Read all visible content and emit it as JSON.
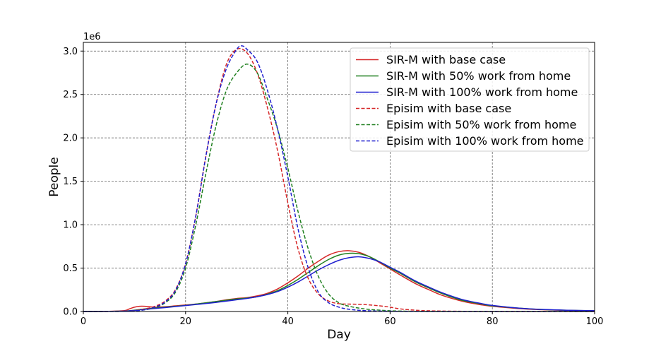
{
  "chart_data": {
    "type": "line",
    "xlabel": "Day",
    "ylabel": "People",
    "y_offset_label": "1e6",
    "xlim": [
      0,
      100
    ],
    "ylim": [
      0,
      3.1
    ],
    "y_scale_multiplier": 1000000,
    "x_ticks": [
      "0",
      "20",
      "40",
      "60",
      "80",
      "100"
    ],
    "y_ticks": [
      "0.0",
      "0.5",
      "1.0",
      "1.5",
      "2.0",
      "2.5",
      "3.0"
    ],
    "grid": true,
    "legend_position": "top-right",
    "series": [
      {
        "name": "SIR-M with base case",
        "color": "#d62728",
        "style": "solid",
        "points": [
          [
            0,
            0
          ],
          [
            5,
            0.002
          ],
          [
            8,
            0.01
          ],
          [
            9,
            0.03
          ],
          [
            10,
            0.05
          ],
          [
            11,
            0.06
          ],
          [
            12,
            0.06
          ],
          [
            13,
            0.055
          ],
          [
            14,
            0.05
          ],
          [
            16,
            0.055
          ],
          [
            18,
            0.065
          ],
          [
            20,
            0.075
          ],
          [
            22,
            0.085
          ],
          [
            24,
            0.1
          ],
          [
            26,
            0.115
          ],
          [
            28,
            0.135
          ],
          [
            30,
            0.15
          ],
          [
            32,
            0.16
          ],
          [
            34,
            0.18
          ],
          [
            36,
            0.21
          ],
          [
            38,
            0.26
          ],
          [
            40,
            0.33
          ],
          [
            42,
            0.41
          ],
          [
            44,
            0.5
          ],
          [
            46,
            0.58
          ],
          [
            48,
            0.65
          ],
          [
            50,
            0.69
          ],
          [
            52,
            0.7
          ],
          [
            54,
            0.68
          ],
          [
            56,
            0.63
          ],
          [
            58,
            0.56
          ],
          [
            60,
            0.49
          ],
          [
            62,
            0.42
          ],
          [
            65,
            0.32
          ],
          [
            68,
            0.24
          ],
          [
            70,
            0.19
          ],
          [
            74,
            0.12
          ],
          [
            78,
            0.075
          ],
          [
            80,
            0.06
          ],
          [
            85,
            0.035
          ],
          [
            90,
            0.02
          ],
          [
            95,
            0.012
          ],
          [
            100,
            0.008
          ]
        ]
      },
      {
        "name": "SIR-M with 50% work from home",
        "color": "#208020",
        "style": "solid",
        "points": [
          [
            0,
            0
          ],
          [
            5,
            0.002
          ],
          [
            8,
            0.005
          ],
          [
            10,
            0.015
          ],
          [
            12,
            0.03
          ],
          [
            14,
            0.04
          ],
          [
            16,
            0.05
          ],
          [
            18,
            0.06
          ],
          [
            20,
            0.07
          ],
          [
            22,
            0.085
          ],
          [
            24,
            0.1
          ],
          [
            26,
            0.115
          ],
          [
            28,
            0.13
          ],
          [
            30,
            0.145
          ],
          [
            32,
            0.155
          ],
          [
            34,
            0.17
          ],
          [
            36,
            0.2
          ],
          [
            38,
            0.24
          ],
          [
            40,
            0.3
          ],
          [
            42,
            0.37
          ],
          [
            44,
            0.45
          ],
          [
            46,
            0.53
          ],
          [
            48,
            0.6
          ],
          [
            50,
            0.65
          ],
          [
            52,
            0.67
          ],
          [
            54,
            0.665
          ],
          [
            56,
            0.63
          ],
          [
            58,
            0.57
          ],
          [
            60,
            0.5
          ],
          [
            62,
            0.44
          ],
          [
            65,
            0.34
          ],
          [
            68,
            0.26
          ],
          [
            70,
            0.21
          ],
          [
            74,
            0.13
          ],
          [
            78,
            0.085
          ],
          [
            80,
            0.065
          ],
          [
            85,
            0.04
          ],
          [
            90,
            0.022
          ],
          [
            95,
            0.013
          ],
          [
            100,
            0.008
          ]
        ]
      },
      {
        "name": "SIR-M with 100% work from home",
        "color": "#1f1fcf",
        "style": "solid",
        "points": [
          [
            0,
            0
          ],
          [
            5,
            0.002
          ],
          [
            8,
            0.005
          ],
          [
            10,
            0.012
          ],
          [
            12,
            0.025
          ],
          [
            14,
            0.035
          ],
          [
            16,
            0.045
          ],
          [
            18,
            0.057
          ],
          [
            20,
            0.068
          ],
          [
            22,
            0.08
          ],
          [
            24,
            0.092
          ],
          [
            26,
            0.105
          ],
          [
            28,
            0.12
          ],
          [
            30,
            0.135
          ],
          [
            32,
            0.15
          ],
          [
            34,
            0.17
          ],
          [
            36,
            0.195
          ],
          [
            38,
            0.23
          ],
          [
            40,
            0.28
          ],
          [
            42,
            0.34
          ],
          [
            44,
            0.41
          ],
          [
            46,
            0.48
          ],
          [
            48,
            0.54
          ],
          [
            50,
            0.59
          ],
          [
            52,
            0.62
          ],
          [
            54,
            0.63
          ],
          [
            56,
            0.61
          ],
          [
            58,
            0.57
          ],
          [
            60,
            0.51
          ],
          [
            62,
            0.45
          ],
          [
            65,
            0.35
          ],
          [
            68,
            0.27
          ],
          [
            70,
            0.22
          ],
          [
            74,
            0.14
          ],
          [
            78,
            0.09
          ],
          [
            80,
            0.07
          ],
          [
            85,
            0.04
          ],
          [
            90,
            0.023
          ],
          [
            95,
            0.014
          ],
          [
            100,
            0.009
          ]
        ]
      },
      {
        "name": "Episim with base case",
        "color": "#d62728",
        "style": "dashed",
        "points": [
          [
            0,
            0
          ],
          [
            6,
            0.002
          ],
          [
            8,
            0.005
          ],
          [
            10,
            0.01
          ],
          [
            12,
            0.03
          ],
          [
            14,
            0.06
          ],
          [
            16,
            0.12
          ],
          [
            18,
            0.25
          ],
          [
            20,
            0.55
          ],
          [
            22,
            1.1
          ],
          [
            24,
            1.8
          ],
          [
            26,
            2.4
          ],
          [
            28,
            2.85
          ],
          [
            30,
            3.02
          ],
          [
            32,
            2.98
          ],
          [
            34,
            2.75
          ],
          [
            36,
            2.35
          ],
          [
            38,
            1.85
          ],
          [
            40,
            1.25
          ],
          [
            42,
            0.72
          ],
          [
            44,
            0.38
          ],
          [
            46,
            0.2
          ],
          [
            48,
            0.12
          ],
          [
            50,
            0.09
          ],
          [
            52,
            0.085
          ],
          [
            55,
            0.08
          ],
          [
            58,
            0.065
          ],
          [
            60,
            0.05
          ],
          [
            62,
            0.03
          ],
          [
            65,
            0.015
          ],
          [
            70,
            0.005
          ],
          [
            80,
            0.001
          ],
          [
            100,
            0
          ]
        ]
      },
      {
        "name": "Episim with 50% work from home",
        "color": "#208020",
        "style": "dashed",
        "points": [
          [
            0,
            0
          ],
          [
            6,
            0.001
          ],
          [
            8,
            0.003
          ],
          [
            10,
            0.008
          ],
          [
            12,
            0.02
          ],
          [
            14,
            0.045
          ],
          [
            16,
            0.1
          ],
          [
            18,
            0.22
          ],
          [
            20,
            0.5
          ],
          [
            22,
            1.0
          ],
          [
            24,
            1.6
          ],
          [
            26,
            2.15
          ],
          [
            28,
            2.55
          ],
          [
            30,
            2.75
          ],
          [
            32,
            2.85
          ],
          [
            34,
            2.75
          ],
          [
            36,
            2.45
          ],
          [
            38,
            2.1
          ],
          [
            40,
            1.65
          ],
          [
            42,
            1.15
          ],
          [
            44,
            0.72
          ],
          [
            46,
            0.4
          ],
          [
            48,
            0.2
          ],
          [
            50,
            0.1
          ],
          [
            52,
            0.06
          ],
          [
            55,
            0.03
          ],
          [
            58,
            0.015
          ],
          [
            62,
            0.005
          ],
          [
            70,
            0.001
          ],
          [
            100,
            0
          ]
        ]
      },
      {
        "name": "Episim with 100% work from home",
        "color": "#1f1fcf",
        "style": "dashed",
        "points": [
          [
            0,
            0
          ],
          [
            6,
            0.001
          ],
          [
            8,
            0.003
          ],
          [
            10,
            0.008
          ],
          [
            12,
            0.02
          ],
          [
            14,
            0.05
          ],
          [
            16,
            0.11
          ],
          [
            18,
            0.24
          ],
          [
            20,
            0.55
          ],
          [
            22,
            1.1
          ],
          [
            24,
            1.8
          ],
          [
            26,
            2.4
          ],
          [
            28,
            2.8
          ],
          [
            30,
            3.02
          ],
          [
            31,
            3.06
          ],
          [
            32,
            3.02
          ],
          [
            34,
            2.88
          ],
          [
            36,
            2.55
          ],
          [
            38,
            2.1
          ],
          [
            40,
            1.55
          ],
          [
            42,
            0.95
          ],
          [
            44,
            0.5
          ],
          [
            46,
            0.22
          ],
          [
            48,
            0.1
          ],
          [
            50,
            0.05
          ],
          [
            52,
            0.025
          ],
          [
            55,
            0.01
          ],
          [
            60,
            0.003
          ],
          [
            70,
            0
          ],
          [
            100,
            0
          ]
        ]
      }
    ]
  }
}
